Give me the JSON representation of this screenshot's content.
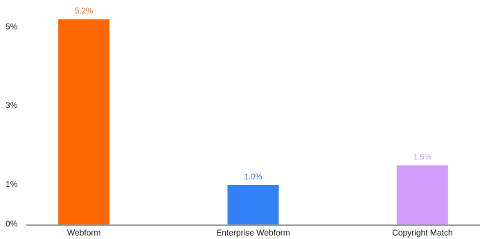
{
  "chart_data": {
    "type": "bar",
    "categories": [
      "Webform",
      "Enterprise Webform",
      "Copyright Match"
    ],
    "values": [
      5.2,
      1.0,
      1.5
    ],
    "value_labels": [
      "5.2%",
      "1.0%",
      "1.5%"
    ],
    "colors": [
      "#ff6600",
      "#3381f7",
      "#d29dfb"
    ],
    "ylim": [
      0,
      5.3
    ],
    "yticks": [
      {
        "value": 0,
        "label": "0%"
      },
      {
        "value": 1,
        "label": "1%"
      },
      {
        "value": 3,
        "label": "3%"
      },
      {
        "value": 5,
        "label": "5%"
      }
    ],
    "grid": false
  }
}
